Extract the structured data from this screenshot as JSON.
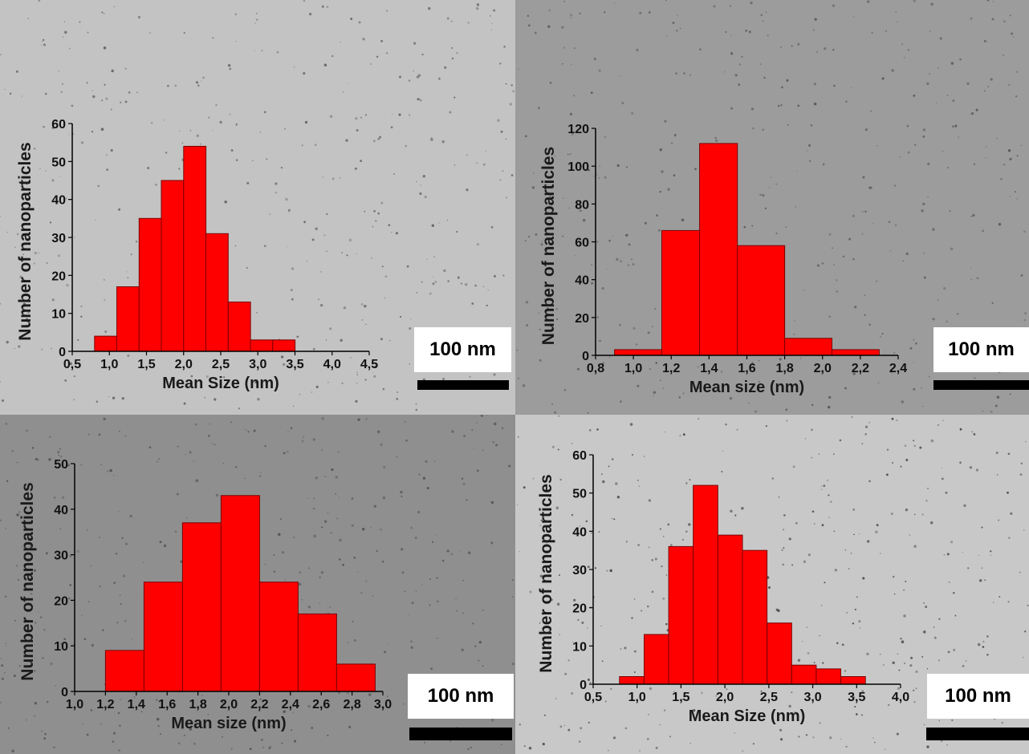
{
  "colors": {
    "bar_fill": "#ff0000",
    "bar_stroke": "#7a0000",
    "axis": "#000000"
  },
  "panels": [
    {
      "background": "#c3c3c3",
      "background_speckle": "#5a5a5a",
      "scale_label": "100 nm",
      "chart": {
        "type": "bar",
        "title": "",
        "xlabel": "Mean Size (nm)",
        "ylabel": "Number of nanoparticles",
        "xlim": [
          0.5,
          4.5
        ],
        "ylim": [
          0,
          60
        ],
        "x_ticks": [
          "0,5",
          "1,0",
          "1,5",
          "2,0",
          "2,5",
          "3,0",
          "3,5",
          "4,0",
          "4,5"
        ],
        "y_ticks": [
          "0",
          "10",
          "20",
          "30",
          "40",
          "50",
          "60"
        ],
        "bin_edges": [
          0.8,
          1.1,
          1.4,
          1.7,
          2.0,
          2.3,
          2.6,
          2.9,
          3.2,
          3.5,
          3.8
        ],
        "values": [
          4,
          17,
          35,
          45,
          54,
          31,
          13,
          3,
          3,
          0
        ],
        "grid": false
      }
    },
    {
      "background": "#9c9c9c",
      "background_speckle": "#505050",
      "scale_label": "100 nm",
      "chart": {
        "type": "bar",
        "title": "",
        "xlabel": "Mean size (nm)",
        "ylabel": "Number of nanoparticles",
        "xlim": [
          0.8,
          2.4
        ],
        "ylim": [
          0,
          120
        ],
        "x_ticks": [
          "0,8",
          "1,0",
          "1,2",
          "1,4",
          "1,6",
          "1,8",
          "2,0",
          "2,2",
          "2,4"
        ],
        "y_ticks": [
          "0",
          "20",
          "40",
          "60",
          "80",
          "100",
          "120"
        ],
        "bin_edges": [
          0.9,
          1.15,
          1.35,
          1.55,
          1.8,
          2.05,
          2.3
        ],
        "values": [
          3,
          66,
          112,
          58,
          9,
          3
        ],
        "grid": false
      }
    },
    {
      "background": "#8f8f8f",
      "background_speckle": "#4c4c4c",
      "scale_label": "100 nm",
      "chart": {
        "type": "bar",
        "title": "",
        "xlabel": "Mean size (nm)",
        "ylabel": "Number of nanoparticles",
        "xlim": [
          1.0,
          3.0
        ],
        "ylim": [
          0,
          50
        ],
        "x_ticks": [
          "1,0",
          "1,2",
          "1,4",
          "1,6",
          "1,8",
          "2,0",
          "2,2",
          "2,4",
          "2,6",
          "2,8",
          "3,0"
        ],
        "y_ticks": [
          "0",
          "10",
          "20",
          "30",
          "40",
          "50"
        ],
        "bin_edges": [
          1.2,
          1.45,
          1.7,
          1.95,
          2.2,
          2.45,
          2.7,
          2.95
        ],
        "values": [
          9,
          24,
          37,
          43,
          24,
          17,
          6
        ],
        "grid": false
      }
    },
    {
      "background": "#c8c8c8",
      "background_speckle": "#3c3c3c",
      "scale_label": "100 nm",
      "chart": {
        "type": "bar",
        "title": "",
        "xlabel": "Mean Size (nm)",
        "ylabel": "Number of nanoparticles",
        "xlim": [
          0.5,
          4.0
        ],
        "ylim": [
          0,
          60
        ],
        "x_ticks": [
          "0,5",
          "1,0",
          "1,5",
          "2,0",
          "2,5",
          "3,0",
          "3,5",
          "4,0"
        ],
        "y_ticks": [
          "0",
          "10",
          "20",
          "30",
          "40",
          "50",
          "60"
        ],
        "bin_edges": [
          0.8,
          1.08,
          1.36,
          1.64,
          1.92,
          2.2,
          2.48,
          2.76,
          3.04,
          3.32,
          3.6
        ],
        "values": [
          2,
          13,
          36,
          52,
          39,
          35,
          16,
          5,
          4,
          2
        ],
        "grid": false
      }
    }
  ]
}
